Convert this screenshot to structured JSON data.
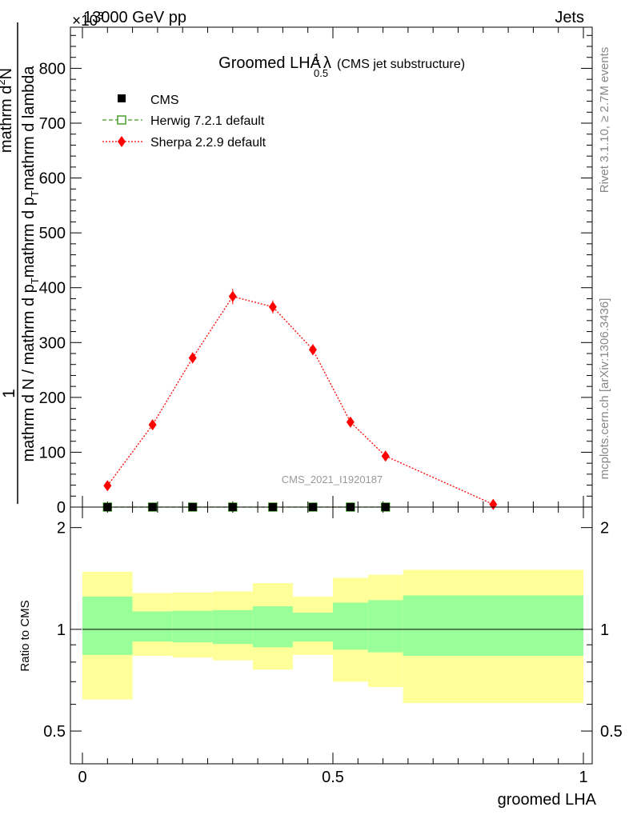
{
  "header": {
    "left": "13000 GeV pp",
    "right": "Jets",
    "exponent": "×10",
    "exponent_power": "3"
  },
  "side_labels": {
    "rivet": "Rivet 3.1.10, ≥ 2.7M events",
    "mcplots": "mcplots.cern.ch [arXiv:1306.3436]"
  },
  "watermark": "CMS_2021_I1920187",
  "chart_data": [
    {
      "type": "scatter",
      "title": "Groomed LHA",
      "title_symbol": "λ",
      "title_sup": "1",
      "title_sub": "0.5",
      "subtitle": "(CMS jet substructure)",
      "ylabel_prefix": "1",
      "ylabel_numerator": "mathrm d²N",
      "ylabel_denominator": "mathrm d N / mathrm d p_T mathrm d p_T mathrm d lambda",
      "ylabel_num_part1": "mathrm d",
      "ylabel_num_sup": "2",
      "ylabel_num_part2": "N",
      "ylabel_den_part1": "mathrm d N / mathrm d p",
      "ylabel_den_sub1": "T",
      "ylabel_den_part2": "mathrm d p",
      "ylabel_den_sub2": "T",
      "ylabel_den_part3": "mathrm d lambda",
      "xlim": [
        0,
        1
      ],
      "ylim": [
        0,
        875
      ],
      "y_major_ticks": [
        0,
        100,
        200,
        300,
        400,
        500,
        600,
        700,
        800
      ],
      "legend_position": "top-left",
      "series": [
        {
          "name": "CMS",
          "marker": "square",
          "color": "#000000",
          "x": [
            0.05,
            0.14,
            0.22,
            0.3,
            0.38,
            0.46,
            0.535,
            0.605
          ],
          "y": [
            0,
            0,
            0,
            0,
            0,
            0,
            0,
            0
          ]
        },
        {
          "name": "Herwig 7.2.1 default",
          "marker": "open-square",
          "line": "dashed",
          "color": "#3a9a1f",
          "x": [
            0.05,
            0.14,
            0.22,
            0.3,
            0.38,
            0.46,
            0.535,
            0.605
          ],
          "y": [
            0,
            0,
            0,
            0,
            0,
            0,
            0,
            0
          ]
        },
        {
          "name": "Sherpa 2.2.9 default",
          "marker": "diamond",
          "line": "dotted",
          "color": "#ff0000",
          "x": [
            0.05,
            0.14,
            0.22,
            0.3,
            0.38,
            0.46,
            0.535,
            0.605,
            0.82
          ],
          "y": [
            39,
            150,
            272,
            384,
            365,
            287,
            155,
            93,
            5
          ],
          "yerr": [
            5,
            8,
            10,
            14,
            12,
            10,
            8,
            5,
            3
          ]
        }
      ]
    },
    {
      "type": "area",
      "ylabel": "Ratio to CMS",
      "xlabel": "groomed LHA",
      "xlim": [
        0,
        1
      ],
      "ylim": [
        0.4,
        2.3
      ],
      "scale": "log",
      "y_labels": [
        0.5,
        1,
        2
      ],
      "x_labels": [
        "0",
        "0.5",
        "1"
      ],
      "reference_line": 1,
      "band_colors": {
        "inner": "#99ff99",
        "outer": "#ffff99"
      },
      "bins": [
        {
          "lo": 0.0,
          "hi": 0.1,
          "inner": [
            0.84,
            1.25
          ],
          "outer": [
            0.62,
            1.48
          ]
        },
        {
          "lo": 0.1,
          "hi": 0.18,
          "inner": [
            0.92,
            1.13
          ],
          "outer": [
            0.835,
            1.28
          ]
        },
        {
          "lo": 0.18,
          "hi": 0.26,
          "inner": [
            0.915,
            1.135
          ],
          "outer": [
            0.825,
            1.285
          ]
        },
        {
          "lo": 0.26,
          "hi": 0.34,
          "inner": [
            0.905,
            1.14
          ],
          "outer": [
            0.81,
            1.295
          ]
        },
        {
          "lo": 0.34,
          "hi": 0.42,
          "inner": [
            0.885,
            1.17
          ],
          "outer": [
            0.76,
            1.37
          ]
        },
        {
          "lo": 0.42,
          "hi": 0.5,
          "inner": [
            0.92,
            1.12
          ],
          "outer": [
            0.84,
            1.25
          ]
        },
        {
          "lo": 0.5,
          "hi": 0.57,
          "inner": [
            0.87,
            1.2
          ],
          "outer": [
            0.7,
            1.42
          ]
        },
        {
          "lo": 0.57,
          "hi": 0.64,
          "inner": [
            0.855,
            1.22
          ],
          "outer": [
            0.675,
            1.45
          ]
        },
        {
          "lo": 0.64,
          "hi": 1.0,
          "inner": [
            0.835,
            1.26
          ],
          "outer": [
            0.605,
            1.5
          ]
        }
      ]
    }
  ]
}
